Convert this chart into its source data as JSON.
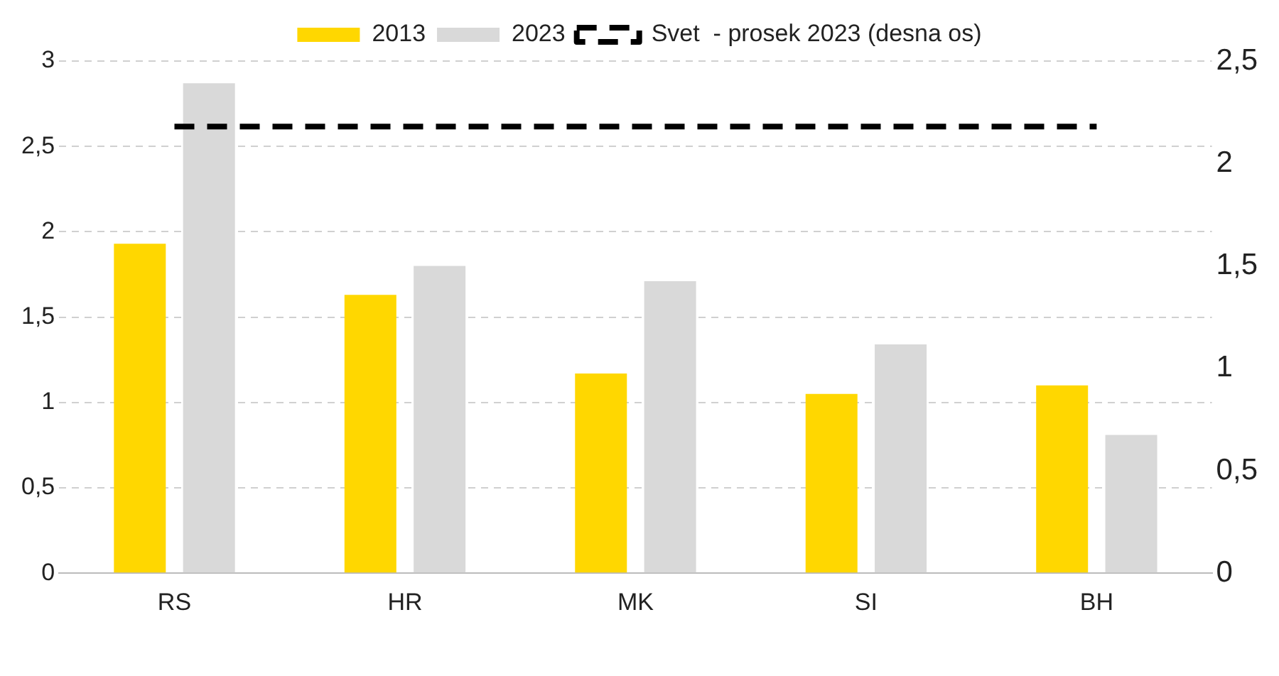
{
  "chart_data": {
    "type": "bar",
    "categories": [
      "RS",
      "HR",
      "MK",
      "SI",
      "BH"
    ],
    "series": [
      {
        "name": "2013",
        "color": "#ffd700",
        "values": [
          1.93,
          1.63,
          1.17,
          1.05,
          1.1
        ]
      },
      {
        "name": "2023",
        "color": "#d9d9d9",
        "values": [
          2.87,
          1.8,
          1.71,
          1.34,
          0.81
        ]
      },
      {
        "name": "Svet  - prosek 2023 (desna os)",
        "type": "line",
        "axis": "y2",
        "color": "#000000",
        "line_style": "dashed",
        "marker": "none",
        "values": [
          2.18,
          2.18,
          2.18,
          2.18,
          2.18
        ]
      }
    ],
    "ylim": [
      0,
      3
    ],
    "yticks": [
      0,
      {
        "value": 0.5,
        "label": "0,5"
      },
      1,
      {
        "value": 1.5,
        "label": "1,5"
      },
      2,
      {
        "value": 2.5,
        "label": "2,5"
      },
      3
    ],
    "y2lim": [
      0,
      2.5
    ],
    "y2ticks": [
      0,
      {
        "value": 0.5,
        "label": "0,5"
      },
      1,
      {
        "value": 1.5,
        "label": "1,5"
      },
      2,
      {
        "value": 2.5,
        "label": "2,5"
      }
    ],
    "grid": "y",
    "legend": "top"
  }
}
